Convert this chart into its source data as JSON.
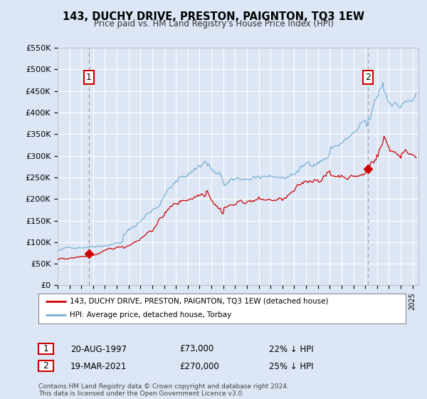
{
  "title": "143, DUCHY DRIVE, PRESTON, PAIGNTON, TQ3 1EW",
  "subtitle": "Price paid vs. HM Land Registry's House Price Index (HPI)",
  "legend_line1": "143, DUCHY DRIVE, PRESTON, PAIGNTON, TQ3 1EW (detached house)",
  "legend_line2": "HPI: Average price, detached house, Torbay",
  "footnote": "Contains HM Land Registry data © Crown copyright and database right 2024.\nThis data is licensed under the Open Government Licence v3.0.",
  "annotation1_label": "1",
  "annotation1_date": "20-AUG-1997",
  "annotation1_price": "£73,000",
  "annotation1_hpi": "22% ↓ HPI",
  "annotation2_label": "2",
  "annotation2_date": "19-MAR-2021",
  "annotation2_price": "£270,000",
  "annotation2_hpi": "25% ↓ HPI",
  "sale1_x": 1997.64,
  "sale1_y": 73000,
  "sale2_x": 2021.22,
  "sale2_y": 270000,
  "hpi_color": "#7bafd4",
  "price_color": "#cc0000",
  "dashed_color": "#aaaaaa",
  "background_color": "#dce6f5",
  "plot_bg": "#dce6f5",
  "ylim": [
    0,
    550000
  ],
  "xlim": [
    1995.0,
    2025.5
  ],
  "yticks": [
    0,
    50000,
    100000,
    150000,
    200000,
    250000,
    300000,
    350000,
    400000,
    450000,
    500000,
    550000
  ],
  "ytick_labels": [
    "£0",
    "£50K",
    "£100K",
    "£150K",
    "£200K",
    "£250K",
    "£300K",
    "£350K",
    "£400K",
    "£450K",
    "£500K",
    "£550K"
  ]
}
